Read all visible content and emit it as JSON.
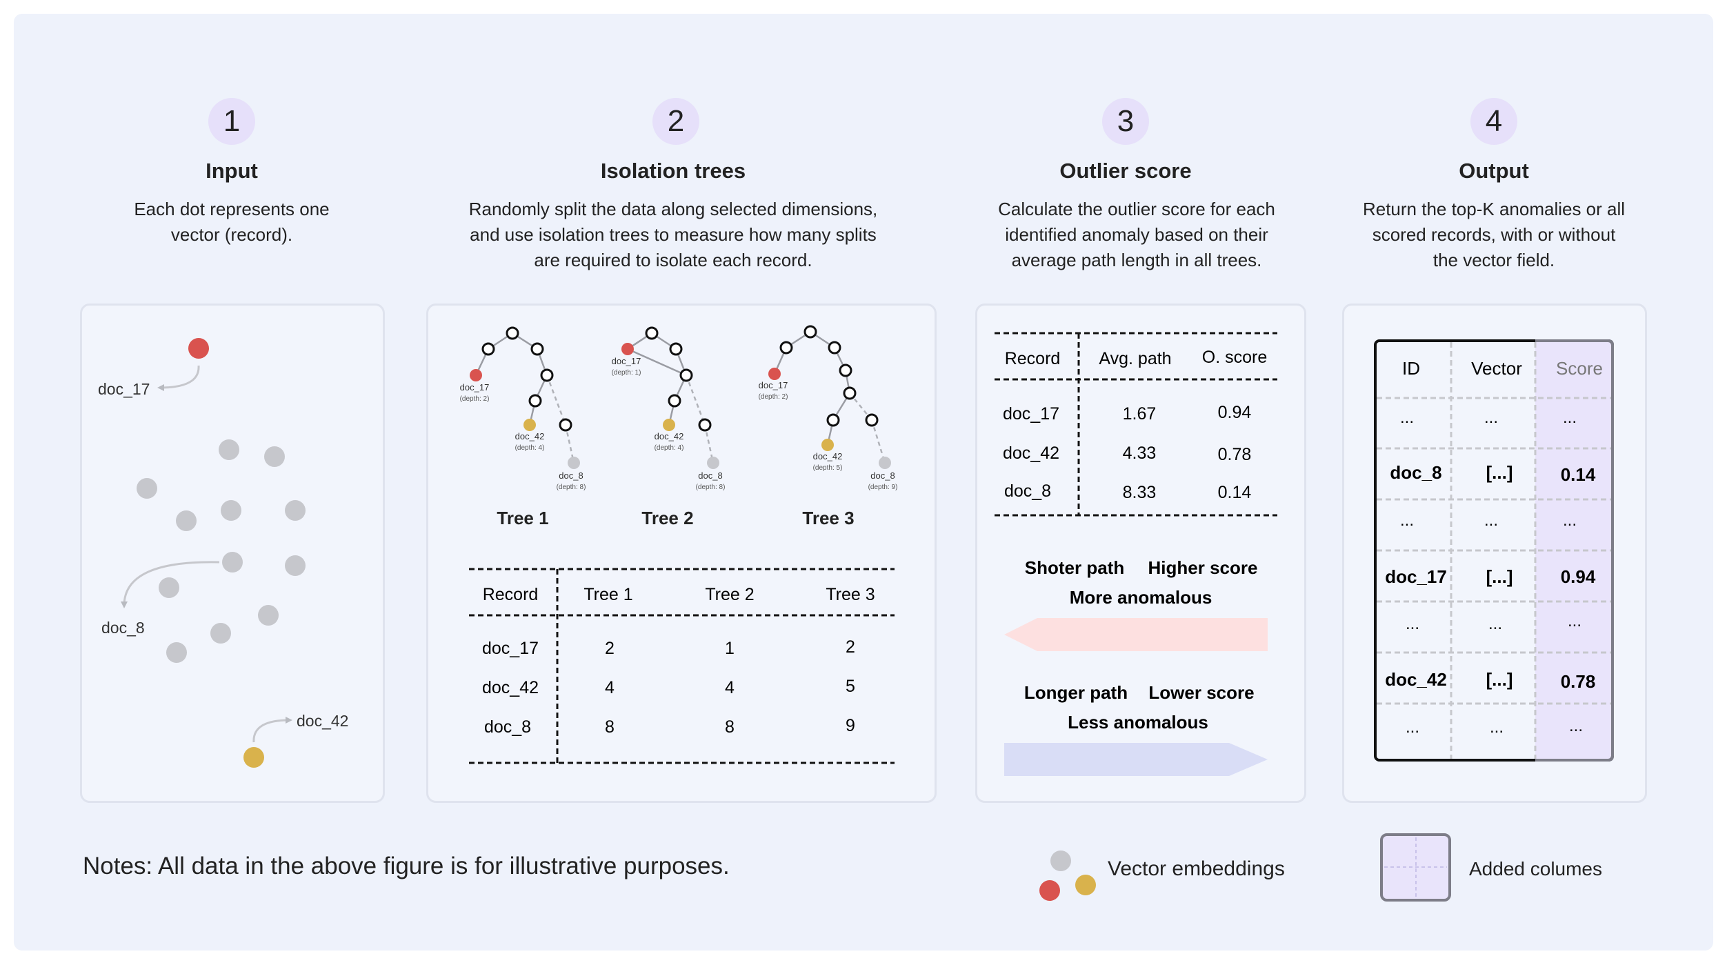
{
  "steps": [
    {
      "number": "1",
      "title": "Input",
      "desc": [
        "Each dot represents one",
        "vector (record)."
      ]
    },
    {
      "number": "2",
      "title": "Isolation trees",
      "desc": [
        "Randomly split the data along selected dimensions,",
        "and use isolation trees to measure how many splits",
        "are required to isolate each record."
      ]
    },
    {
      "number": "3",
      "title": "Outlier score",
      "desc": [
        "Calculate the outlier score for each",
        "identified anomaly based on their",
        "average path length in all trees."
      ]
    },
    {
      "number": "4",
      "title": "Output",
      "desc": [
        "Return the top-K anomalies or all",
        "scored records, with or without",
        "the vector field."
      ]
    }
  ],
  "input_labels": {
    "doc17": "doc_17",
    "doc8": "doc_8",
    "doc42": "doc_42"
  },
  "trees": [
    {
      "name": "Tree 1",
      "doc17": "doc_17",
      "d17": "(depth: 2)",
      "doc42": "doc_42",
      "d42": "(depth: 4)",
      "doc8": "doc_8",
      "d8": "(depth: 8)"
    },
    {
      "name": "Tree 2",
      "doc17": "doc_17",
      "d17": "(depth: 1)",
      "doc42": "doc_42",
      "d42": "(depth: 4)",
      "doc8": "doc_8",
      "d8": "(depth: 8)"
    },
    {
      "name": "Tree 3",
      "doc17": "doc_17",
      "d17": "(depth: 2)",
      "doc42": "doc_42",
      "d42": "(depth: 5)",
      "doc8": "doc_8",
      "d8": "(depth: 9)"
    }
  ],
  "depth_table": {
    "headers": [
      "Record",
      "Tree 1",
      "Tree 2",
      "Tree 3"
    ],
    "rows": [
      [
        "doc_17",
        "2",
        "1",
        "2"
      ],
      [
        "doc_42",
        "4",
        "4",
        "5"
      ],
      [
        "doc_8",
        "8",
        "8",
        "9"
      ]
    ]
  },
  "score_table": {
    "headers": [
      "Record",
      "Avg. path",
      "O. score"
    ],
    "rows": [
      [
        "doc_17",
        "1.67",
        "0.94"
      ],
      [
        "doc_42",
        "4.33",
        "0.78"
      ],
      [
        "doc_8",
        "8.33",
        "0.14"
      ]
    ]
  },
  "arrows": {
    "short_path": "Shoter path",
    "higher_score": "Higher score",
    "more_anomalous": "More anomalous",
    "longer_path": "Longer path",
    "lower_score": "Lower score",
    "less_anomalous": "Less anomalous"
  },
  "output_table": {
    "headers": [
      "ID",
      "Vector",
      "Score"
    ],
    "rows": [
      [
        "...",
        "...",
        "..."
      ],
      [
        "doc_8",
        "[...]",
        "0.14"
      ],
      [
        "...",
        "...",
        "..."
      ],
      [
        "doc_17",
        "[...]",
        "0.94"
      ],
      [
        "...",
        "...",
        "..."
      ],
      [
        "doc_42",
        "[...]",
        "0.78"
      ],
      [
        "...",
        "...",
        "..."
      ]
    ]
  },
  "notes": "Notes: All data in the above figure is for illustrative purposes.",
  "legend": {
    "vectors": "Vector embeddings",
    "added": "Added columes"
  },
  "colors": {
    "red": "#d9534f",
    "yellow": "#d9b24c",
    "gray": "#c6c7cc",
    "lavender": "#e9e4fb",
    "pink": "#fde0e0",
    "blue": "#d9ddf6"
  }
}
